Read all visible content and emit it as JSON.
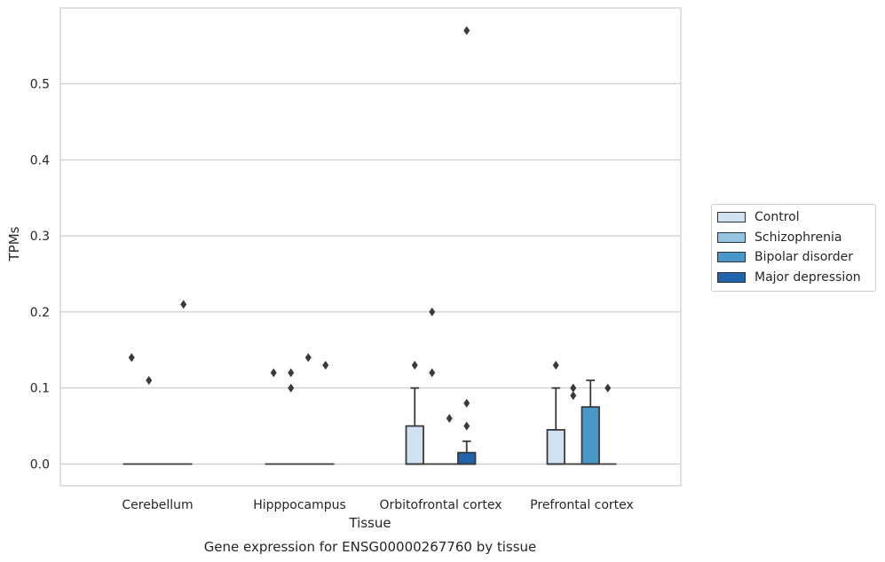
{
  "chart_data": {
    "type": "box",
    "title": "Gene expression for ENSG00000267760 by tissue",
    "xlabel": "Tissue",
    "ylabel": "TPMs",
    "ylim": [
      -0.028,
      0.6
    ],
    "yticks": [
      "0.0",
      "0.1",
      "0.2",
      "0.3",
      "0.4",
      "0.5"
    ],
    "grid": "horizontal",
    "legend_position": "right",
    "categories": [
      "Cerebellum",
      "Hipppocampus",
      "Orbitofrontal cortex",
      "Prefrontal cortex"
    ],
    "series": [
      {
        "name": "Control",
        "color": "#d0e1f2",
        "boxes": [
          {
            "q1": 0,
            "median": 0,
            "q3": 0,
            "whisker_low": 0,
            "whisker_high": 0,
            "outliers": [
              0.14
            ]
          },
          {
            "q1": 0,
            "median": 0,
            "q3": 0,
            "whisker_low": 0,
            "whisker_high": 0,
            "outliers": [
              0.12
            ]
          },
          {
            "q1": 0,
            "median": 0,
            "q3": 0.05,
            "whisker_low": 0,
            "whisker_high": 0.1,
            "outliers": [
              0.13
            ]
          },
          {
            "q1": 0,
            "median": 0,
            "q3": 0.045,
            "whisker_low": 0,
            "whisker_high": 0.1,
            "outliers": [
              0.13
            ]
          }
        ]
      },
      {
        "name": "Schizophrenia",
        "color": "#94c4df",
        "boxes": [
          {
            "q1": 0,
            "median": 0,
            "q3": 0,
            "whisker_low": 0,
            "whisker_high": 0,
            "outliers": [
              0.11
            ]
          },
          {
            "q1": 0,
            "median": 0,
            "q3": 0,
            "whisker_low": 0,
            "whisker_high": 0,
            "outliers": [
              0.12,
              0.1
            ]
          },
          {
            "q1": 0,
            "median": 0,
            "q3": 0,
            "whisker_low": 0,
            "whisker_high": 0,
            "outliers": [
              0.2,
              0.12
            ]
          },
          {
            "q1": 0,
            "median": 0,
            "q3": 0,
            "whisker_low": 0,
            "whisker_high": 0,
            "outliers": [
              0.1,
              0.09
            ]
          }
        ]
      },
      {
        "name": "Bipolar disorder",
        "color": "#4a98c9",
        "boxes": [
          {
            "q1": 0,
            "median": 0,
            "q3": 0,
            "whisker_low": 0,
            "whisker_high": 0,
            "outliers": []
          },
          {
            "q1": 0,
            "median": 0,
            "q3": 0,
            "whisker_low": 0,
            "whisker_high": 0,
            "outliers": [
              0.14
            ]
          },
          {
            "q1": 0,
            "median": 0,
            "q3": 0,
            "whisker_low": 0,
            "whisker_high": 0,
            "outliers": [
              0.06
            ]
          },
          {
            "q1": 0,
            "median": 0,
            "q3": 0.075,
            "whisker_low": 0,
            "whisker_high": 0.11,
            "outliers": []
          }
        ]
      },
      {
        "name": "Major depression",
        "color": "#2163aa",
        "boxes": [
          {
            "q1": 0,
            "median": 0,
            "q3": 0,
            "whisker_low": 0,
            "whisker_high": 0,
            "outliers": [
              0.21
            ]
          },
          {
            "q1": 0,
            "median": 0,
            "q3": 0,
            "whisker_low": 0,
            "whisker_high": 0,
            "outliers": [
              0.13
            ]
          },
          {
            "q1": 0,
            "median": 0,
            "q3": 0.015,
            "whisker_low": 0,
            "whisker_high": 0.03,
            "outliers": [
              0.57,
              0.08,
              0.05
            ]
          },
          {
            "q1": 0,
            "median": 0,
            "q3": 0,
            "whisker_low": 0,
            "whisker_high": 0,
            "outliers": [
              0.1
            ]
          }
        ]
      }
    ]
  }
}
